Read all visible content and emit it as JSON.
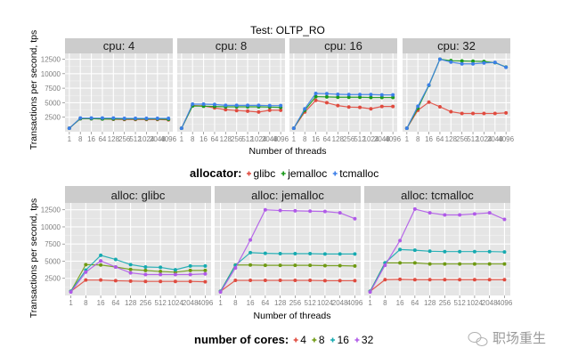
{
  "chart_data": [
    {
      "type": "line",
      "title": "Test:  OLTP_RO",
      "xlabel": "Number of threads",
      "ylabel": "Transactions per second, tps",
      "categories": [
        "1",
        "8",
        "16",
        "64",
        "128",
        "256",
        "512",
        "1024",
        "2048",
        "4096"
      ],
      "yticks": [
        2500,
        5000,
        7500,
        10000,
        12500
      ],
      "ylim": [
        0,
        13500
      ],
      "grid": true,
      "legend": {
        "title": "allocator:",
        "position": "bottom",
        "entries": [
          {
            "name": "glibc",
            "color": "#e04b3f"
          },
          {
            "name": "jemalloc",
            "color": "#1a9a1a"
          },
          {
            "name": "tcmalloc",
            "color": "#3c7fe8"
          }
        ]
      },
      "facets": [
        {
          "label": "cpu: 4",
          "series": [
            {
              "name": "glibc",
              "values": [
                600,
                2250,
                2250,
                2200,
                2150,
                2100,
                2100,
                2100,
                2100,
                2050
              ]
            },
            {
              "name": "jemalloc",
              "values": [
                600,
                2250,
                2250,
                2200,
                2200,
                2200,
                2200,
                2200,
                2200,
                2150
              ]
            },
            {
              "name": "tcmalloc",
              "values": [
                600,
                2350,
                2350,
                2350,
                2350,
                2300,
                2300,
                2300,
                2300,
                2300
              ]
            }
          ]
        },
        {
          "label": "cpu: 8",
          "series": [
            {
              "name": "glibc",
              "values": [
                600,
                4500,
                4450,
                4100,
                3800,
                3650,
                3550,
                3400,
                3700,
                3700
              ]
            },
            {
              "name": "jemalloc",
              "values": [
                600,
                4450,
                4400,
                4350,
                4300,
                4300,
                4300,
                4300,
                4250,
                4200
              ]
            },
            {
              "name": "tcmalloc",
              "values": [
                600,
                4750,
                4750,
                4700,
                4550,
                4550,
                4550,
                4550,
                4500,
                4500
              ]
            }
          ]
        },
        {
          "label": "cpu: 16",
          "series": [
            {
              "name": "glibc",
              "values": [
                600,
                3400,
                5400,
                5000,
                4500,
                4250,
                4200,
                3950,
                4350,
                4350
              ]
            },
            {
              "name": "jemalloc",
              "values": [
                600,
                3700,
                6050,
                6000,
                5950,
                5950,
                5950,
                5900,
                5900,
                5900
              ]
            },
            {
              "name": "tcmalloc",
              "values": [
                600,
                3950,
                6600,
                6550,
                6450,
                6400,
                6400,
                6400,
                6350,
                6350
              ]
            }
          ]
        },
        {
          "label": "cpu: 32",
          "series": [
            {
              "name": "glibc",
              "values": [
                600,
                3700,
                5100,
                4300,
                3450,
                3150,
                3150,
                3150,
                3150,
                3250
              ]
            },
            {
              "name": "jemalloc",
              "values": [
                600,
                4050,
                8000,
                12500,
                12250,
                12200,
                12150,
                12100,
                11900,
                11150
              ]
            },
            {
              "name": "tcmalloc",
              "values": [
                600,
                4400,
                8050,
                12500,
                12000,
                11700,
                11700,
                11850,
                11950,
                11100
              ]
            }
          ]
        }
      ]
    },
    {
      "type": "line",
      "xlabel": "Number of threads",
      "ylabel": "Transactions per second, tps",
      "categories": [
        "1",
        "8",
        "16",
        "64",
        "128",
        "256",
        "512",
        "1024",
        "2048",
        "4096"
      ],
      "yticks": [
        2500,
        5000,
        7500,
        10000,
        12500
      ],
      "ylim": [
        0,
        13500
      ],
      "grid": true,
      "legend": {
        "title": "number of cores:",
        "position": "bottom",
        "entries": [
          {
            "name": "4",
            "color": "#e04b3f"
          },
          {
            "name": "8",
            "color": "#6f9a12"
          },
          {
            "name": "16",
            "color": "#16aab0"
          },
          {
            "name": "32",
            "color": "#b05ae8"
          }
        ]
      },
      "facets": [
        {
          "label": "alloc: glibc",
          "series": [
            {
              "name": "4",
              "values": [
                600,
                2250,
                2250,
                2150,
                2100,
                2050,
                2050,
                2050,
                2050,
                2000
              ]
            },
            {
              "name": "8",
              "values": [
                600,
                4500,
                4450,
                4150,
                3800,
                3650,
                3500,
                3400,
                3650,
                3650
              ]
            },
            {
              "name": "16",
              "values": [
                600,
                3700,
                5850,
                5250,
                4500,
                4150,
                4100,
                3750,
                4300,
                4300
              ]
            },
            {
              "name": "32",
              "values": [
                500,
                3400,
                5050,
                4150,
                3300,
                3050,
                3050,
                3050,
                3050,
                3150
              ]
            }
          ]
        },
        {
          "label": "alloc: jemalloc",
          "series": [
            {
              "name": "4",
              "values": [
                600,
                2200,
                2200,
                2200,
                2200,
                2200,
                2200,
                2150,
                2150,
                2150
              ]
            },
            {
              "name": "8",
              "values": [
                600,
                4450,
                4450,
                4400,
                4400,
                4400,
                4400,
                4350,
                4350,
                4300
              ]
            },
            {
              "name": "16",
              "values": [
                600,
                4400,
                6250,
                6150,
                6100,
                6100,
                6100,
                6050,
                6050,
                6050
              ]
            },
            {
              "name": "32",
              "values": [
                500,
                4000,
                8100,
                12500,
                12400,
                12350,
                12300,
                12250,
                12050,
                11200
              ]
            }
          ]
        },
        {
          "label": "alloc: tcmalloc",
          "series": [
            {
              "name": "4",
              "values": [
                600,
                2300,
                2350,
                2300,
                2300,
                2300,
                2300,
                2300,
                2300,
                2300
              ]
            },
            {
              "name": "8",
              "values": [
                600,
                4750,
                4750,
                4750,
                4600,
                4600,
                4600,
                4600,
                4600,
                4600
              ]
            },
            {
              "name": "16",
              "values": [
                600,
                4750,
                6700,
                6600,
                6450,
                6400,
                6400,
                6400,
                6400,
                6350
              ]
            },
            {
              "name": "32",
              "values": [
                500,
                4400,
                8000,
                12600,
                12050,
                11750,
                11750,
                11900,
                12050,
                11100
              ]
            }
          ]
        }
      ]
    }
  ],
  "watermark": {
    "text": "职场重生",
    "icon": "wechat-icon"
  }
}
